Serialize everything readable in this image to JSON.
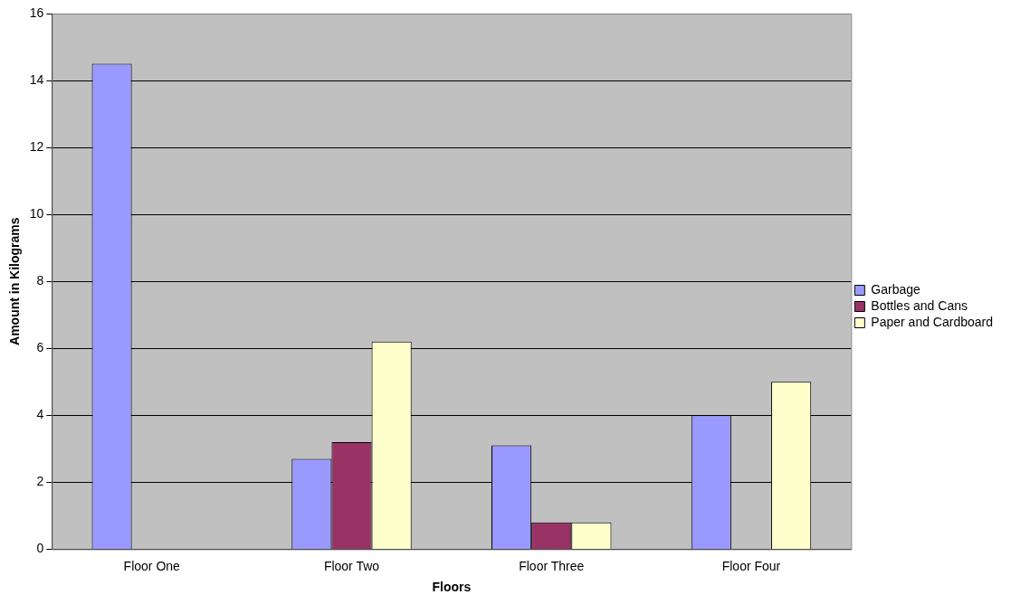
{
  "chart_data": {
    "type": "bar",
    "xlabel": "Floors",
    "ylabel": "Amount in Kilograms",
    "categories": [
      "Floor One",
      "Floor Two",
      "Floor Three",
      "Floor Four"
    ],
    "series": [
      {
        "name": "Garbage",
        "color": "#9999ff",
        "values": [
          14.5,
          2.7,
          3.1,
          4.0
        ]
      },
      {
        "name": "Bottles and Cans",
        "color": "#993366",
        "values": [
          0,
          3.2,
          0.8,
          0
        ]
      },
      {
        "name": "Paper and Cardboard",
        "color": "#ffffcc",
        "values": [
          0,
          6.2,
          0.8,
          5.0
        ]
      }
    ],
    "ylim": [
      0,
      16
    ],
    "yticks": [
      0,
      2,
      4,
      6,
      8,
      10,
      12,
      14,
      16
    ],
    "grid": "y",
    "legend": "right"
  }
}
